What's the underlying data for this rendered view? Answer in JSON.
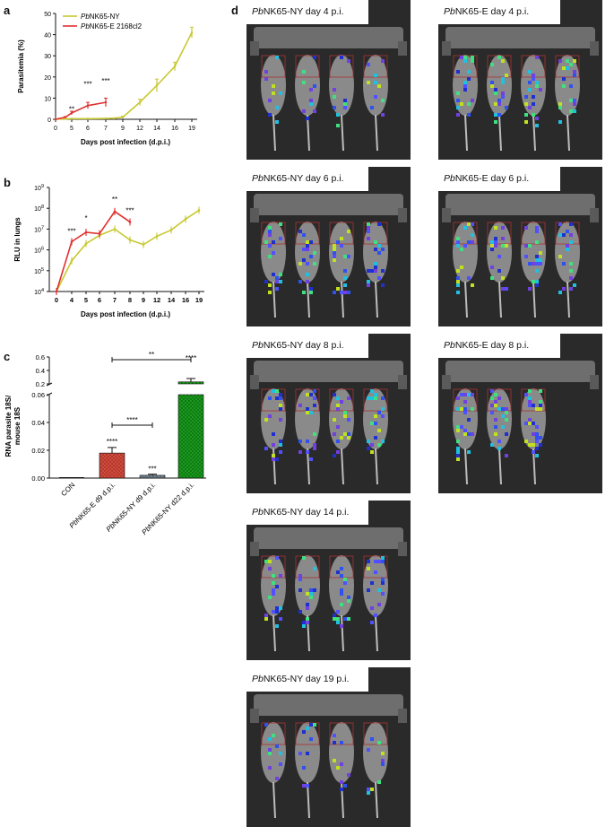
{
  "panels": {
    "a": "a",
    "b": "b",
    "c": "c",
    "d": "d"
  },
  "chart_data": [
    {
      "type": "line",
      "panel": "a",
      "title": "",
      "ylabel": "Parasitemia (%)",
      "xlabel": "Days post infection (d.p.i.)",
      "x_ticks": [
        "0",
        "5",
        "6",
        "7",
        "9",
        "12",
        "14",
        "16",
        "19"
      ],
      "y_ticks": [
        "0",
        "10",
        "20",
        "30",
        "40",
        "50"
      ],
      "ylim": [
        0,
        50
      ],
      "series": [
        {
          "name": "PbNK65-NY",
          "name_italic": "Pb",
          "name_rest": "NK65-NY",
          "color": "#c8c832",
          "points": [
            [
              0,
              0
            ],
            [
              4,
              0.2
            ],
            [
              5,
              0.3
            ],
            [
              6,
              0.3
            ],
            [
              7,
              0.4
            ],
            [
              8,
              0.5
            ],
            [
              9,
              1
            ],
            [
              12,
              8
            ],
            [
              14,
              16
            ],
            [
              16,
              25
            ],
            [
              19,
              41
            ]
          ],
          "errors": [
            0,
            0,
            0,
            0,
            0,
            0,
            0.5,
            1.5,
            3,
            2,
            2.5
          ]
        },
        {
          "name": "PbNK65-E 2168cl2",
          "name_italic": "Pb",
          "name_rest": "NK65-E 2168cl2",
          "color": "#e03030",
          "points": [
            [
              0,
              0
            ],
            [
              4,
              1
            ],
            [
              5,
              3
            ],
            [
              6,
              6.5
            ],
            [
              7,
              8
            ]
          ],
          "errors": [
            0,
            0.3,
            0.8,
            1.5,
            2
          ]
        }
      ],
      "annotations": [
        {
          "text": "**",
          "x": 5,
          "y": 3.5
        },
        {
          "text": "***",
          "x": 6,
          "y": 15.5
        },
        {
          "text": "***",
          "x": 7,
          "y": 17
        }
      ]
    },
    {
      "type": "line",
      "panel": "b",
      "title": "",
      "ylabel": "RLU in lungs",
      "xlabel": "Days post infection (d.p.i.)",
      "yscale": "log",
      "x_ticks": [
        "0",
        "4",
        "5",
        "6",
        "7",
        "8",
        "9",
        "12",
        "14",
        "16",
        "19"
      ],
      "y_ticks": [
        "10^4",
        "10^5",
        "10^6",
        "10^7",
        "10^8",
        "10^9"
      ],
      "ylim": [
        10000,
        1000000000
      ],
      "series": [
        {
          "name": "PbNK65-NY",
          "color": "#c8c832",
          "points": [
            [
              0,
              10000
            ],
            [
              4,
              300000
            ],
            [
              5,
              2000000
            ],
            [
              6,
              5000000
            ],
            [
              7,
              10000000
            ],
            [
              8,
              3000000
            ],
            [
              9,
              1800000
            ],
            [
              12,
              4500000
            ],
            [
              14,
              9000000
            ],
            [
              16,
              30000000
            ],
            [
              19,
              80000000
            ]
          ]
        },
        {
          "name": "PbNK65-E 2168cl2",
          "color": "#e03030",
          "points": [
            [
              0,
              10000
            ],
            [
              4,
              2500000
            ],
            [
              5,
              7000000
            ],
            [
              6,
              6000000
            ],
            [
              7,
              70000000
            ],
            [
              8,
              22000000
            ]
          ]
        }
      ],
      "annotations": [
        {
          "text": "***",
          "x": 4,
          "y": 6000000
        },
        {
          "text": "*",
          "x": 5,
          "y": 25000000
        },
        {
          "text": "**",
          "x": 7,
          "y": 200000000
        },
        {
          "text": "***",
          "x": 8,
          "y": 60000000
        }
      ]
    },
    {
      "type": "bar",
      "panel": "c",
      "title": "",
      "ylabel_line1": "RNA parasite 18S/",
      "ylabel_line2": "mouse 18S",
      "categories": [
        "CON",
        "PbNK65-E d9 d.p.i.",
        "PbNK65-NY d9 d.p.i.",
        "PbNK65-NY d22 d.p.i."
      ],
      "category_parts": [
        {
          "italic": "",
          "rest": "CON"
        },
        {
          "italic": "Pb",
          "rest": "NK65-E d9 d.p.i."
        },
        {
          "italic": "Pb",
          "rest": "NK65-NY d9 d.p.i."
        },
        {
          "italic": "Pb",
          "rest": "NK65-NY d22 d.p.i."
        }
      ],
      "values": [
        0.0,
        0.018,
        0.002,
        0.23
      ],
      "errors": [
        0.0,
        0.004,
        0.0008,
        0.05
      ],
      "colors": [
        "#ffffff",
        "#c0392b",
        "#6a7f8c",
        "#1a8a1a"
      ],
      "y_ticks_lower": [
        "0.00",
        "0.02",
        "0.04",
        "0.06"
      ],
      "y_ticks_upper": [
        "0.2",
        "0.4",
        "0.6"
      ],
      "broken_axis": true,
      "significance": [
        {
          "text": "****",
          "over": 1
        },
        {
          "text": "***",
          "over": 2
        },
        {
          "text": "****",
          "over": 3
        },
        {
          "text": "****",
          "bracket": [
            1,
            2
          ]
        },
        {
          "text": "**",
          "bracket": [
            1,
            3
          ]
        }
      ]
    }
  ],
  "panel_d": {
    "cells": [
      {
        "label_italic": "Pb",
        "label_rest": "NK65-NY day 4 p.i.",
        "pattern": "low"
      },
      {
        "label_italic": "Pb",
        "label_rest": "NK65-E day 4 p.i.",
        "pattern": "medium"
      },
      {
        "label_italic": "Pb",
        "label_rest": "NK65-NY day 6 p.i.",
        "pattern": "medium"
      },
      {
        "label_italic": "Pb",
        "label_rest": "NK65-E day 6 p.i.",
        "pattern": "medium"
      },
      {
        "label_italic": "Pb",
        "label_rest": "NK65-NY day 8 p.i.",
        "pattern": "medium"
      },
      {
        "label_italic": "Pb",
        "label_rest": "NK65-E day 8 p.i.",
        "pattern": "high3"
      },
      {
        "label_italic": "Pb",
        "label_rest": "NK65-NY day 14 p.i.",
        "pattern": "medium"
      },
      {
        "label_italic": "Pb",
        "label_rest": "NK65-NY day 19 p.i.",
        "pattern": "low"
      }
    ]
  }
}
